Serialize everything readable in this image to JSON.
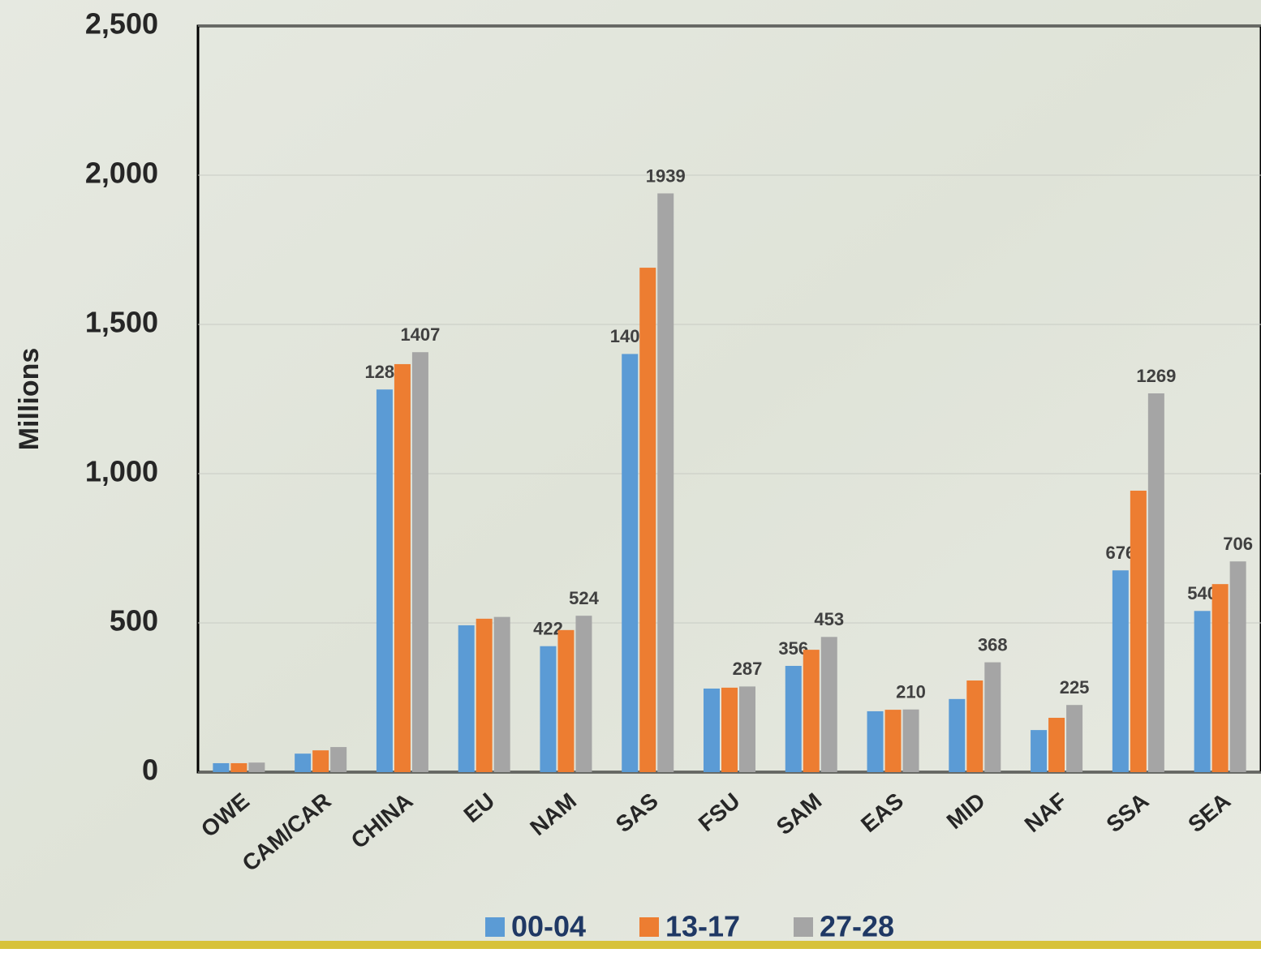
{
  "chart_data": {
    "type": "bar",
    "y_label": "Millions",
    "categories": [
      "OWE",
      "CAM/CAR",
      "CHINA",
      "EU",
      "NAM",
      "SAS",
      "FSU",
      "SAM",
      "EAS",
      "MID",
      "NAF",
      "SSA",
      "SEA"
    ],
    "series": [
      {
        "name": "00-04",
        "color": "#5b9bd5",
        "values": [
          30,
          62,
          1282,
          492,
          422,
          1401,
          280,
          356,
          204,
          245,
          141,
          676,
          540
        ],
        "value_labels": [
          null,
          null,
          "1282",
          null,
          "422",
          "1401",
          null,
          "356",
          null,
          null,
          null,
          "676",
          "540"
        ]
      },
      {
        "name": "13-17",
        "color": "#ed7d31",
        "values": [
          30,
          73,
          1367,
          514,
          476,
          1690,
          283,
          410,
          209,
          307,
          182,
          943,
          630
        ],
        "value_labels": [
          null,
          null,
          null,
          null,
          null,
          null,
          null,
          null,
          null,
          null,
          null,
          null,
          null
        ]
      },
      {
        "name": "27-28",
        "color": "#a5a5a5",
        "values": [
          32,
          84,
          1407,
          520,
          524,
          1939,
          287,
          453,
          210,
          368,
          225,
          1269,
          706
        ],
        "value_labels": [
          null,
          null,
          "1407",
          null,
          "524",
          "1939",
          "287",
          "453",
          "210",
          "368",
          "225",
          "1269",
          "706"
        ]
      }
    ],
    "ylim": [
      0,
      2500
    ],
    "yticks": [
      {
        "value": 0,
        "label": "0"
      },
      {
        "value": 500,
        "label": "500"
      },
      {
        "value": 1000,
        "label": "1,000"
      },
      {
        "value": 1500,
        "label": "1,500"
      },
      {
        "value": 2000,
        "label": "2,000"
      },
      {
        "value": 2500,
        "label": "2,500"
      }
    ],
    "grid": true,
    "legend": "bottom"
  }
}
